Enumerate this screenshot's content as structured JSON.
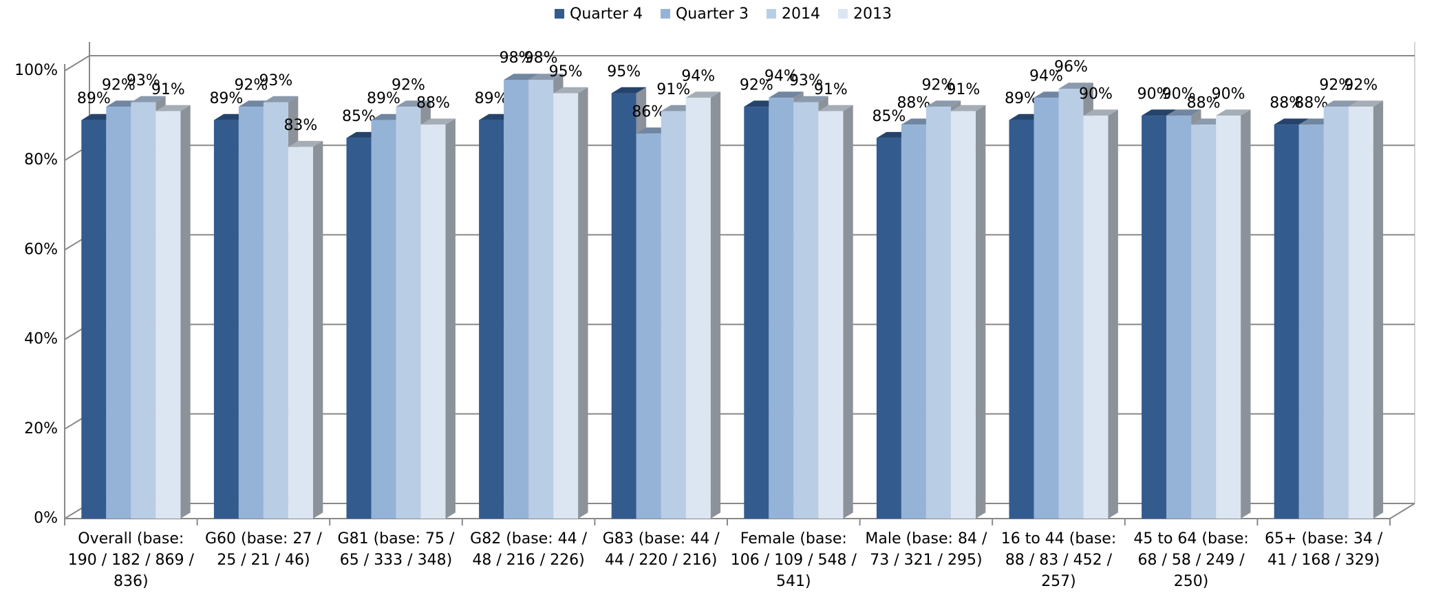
{
  "chart_data": {
    "type": "bar3d",
    "categories": [
      "Overall (base: 190 / 182 / 869 / 836)",
      "G60 (base: 27 / 25 / 21 / 46)",
      "G81 (base: 75 / 65 / 333 / 348)",
      "G82 (base: 44 / 48 / 216 / 226)",
      "G83 (base: 44 / 44 / 220 / 216)",
      "Female (base: 106 / 109 / 548 / 541)",
      "Male (base: 84 / 73 / 321 / 295)",
      "16 to 44 (base: 88 / 83 / 452 / 257)",
      "45 to 64 (base: 68 / 58 / 249 / 250)",
      "65+ (base: 34 / 41 / 168 / 329)"
    ],
    "series": [
      {
        "name": "Quarter 4",
        "color": "#335b8e",
        "values": [
          89,
          89,
          85,
          89,
          95,
          92,
          85,
          89,
          90,
          88
        ],
        "value_labels": [
          "89%",
          "89%",
          "85%",
          "89%",
          "95%",
          "92%",
          "85%",
          "89%",
          "90%",
          "88%"
        ]
      },
      {
        "name": "Quarter 3",
        "color": "#95b3d7",
        "values": [
          92,
          92,
          89,
          98,
          86,
          94,
          88,
          94,
          90,
          88
        ],
        "value_labels": [
          "92%",
          "92%",
          "89%",
          "98%",
          "86%",
          "94%",
          "88%",
          "94%",
          "90%",
          "88%"
        ]
      },
      {
        "name": "2014",
        "color": "#b9cde5",
        "values": [
          93,
          93,
          92,
          98,
          91,
          93,
          92,
          96,
          88,
          92
        ],
        "value_labels": [
          "93%",
          "93%",
          "92%",
          "98%",
          "91%",
          "93%",
          "92%",
          "96%",
          "88%",
          "92%"
        ]
      },
      {
        "name": "2013",
        "color": "#dce6f2",
        "values": [
          91,
          83,
          88,
          95,
          94,
          91,
          91,
          90,
          90,
          92
        ],
        "value_labels": [
          "91%",
          "83%",
          "88%",
          "95%",
          "94%",
          "91%",
          "91%",
          "90%",
          "90%",
          "92%"
        ]
      }
    ],
    "ylim": [
      0,
      100
    ],
    "yticks": [
      {
        "value": 0,
        "label": "0%"
      },
      {
        "value": 20,
        "label": "20%"
      },
      {
        "value": 40,
        "label": "40%"
      },
      {
        "value": 60,
        "label": "60%"
      },
      {
        "value": 80,
        "label": "80%"
      },
      {
        "value": 100,
        "label": "100%"
      }
    ],
    "grid": true,
    "legend": "top"
  }
}
